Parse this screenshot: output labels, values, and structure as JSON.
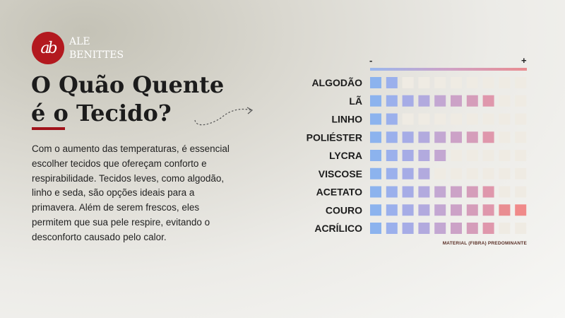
{
  "brand": {
    "logo_text": "ab",
    "name_line1": "ALE",
    "name_line2": "BENITTES"
  },
  "headline": {
    "line1": "O Quão Quente",
    "line2": "é o Tecido?"
  },
  "body_text": "Com o aumento das temperaturas, é essencial escolher tecidos que ofereçam conforto e respirabilidade. Tecidos leves, como algodão, linho e seda, são opções ideais para a primavera. Além de serem frescos, eles permitem que sua pele respire, evitando o desconforto causado pelo calor.",
  "scale": {
    "min_label": "-",
    "max_label": "+"
  },
  "footnote": "MATERIAL (FIBRA) PREDOMINANTE",
  "colors": {
    "accent": "#b3191f",
    "empty_cell": "#efebe3",
    "scale": [
      "#8cb3ee",
      "#9bb0ec",
      "#a6ace6",
      "#b2aade",
      "#c3a7d2",
      "#cca2c7",
      "#d59dba",
      "#df97ac",
      "#e98d91",
      "#f08a8a"
    ]
  },
  "chart_data": {
    "type": "heatmap",
    "title": "",
    "scale_steps": 10,
    "categories": [
      "ALGODÃO",
      "LÃ",
      "LINHO",
      "POLIÉSTER",
      "LYCRA",
      "VISCOSE",
      "ACETATO",
      "COURO",
      "ACRÍLICO"
    ],
    "values": [
      2,
      8,
      2,
      8,
      5,
      4,
      8,
      10,
      8
    ],
    "xlabel": "",
    "ylabel": ""
  }
}
